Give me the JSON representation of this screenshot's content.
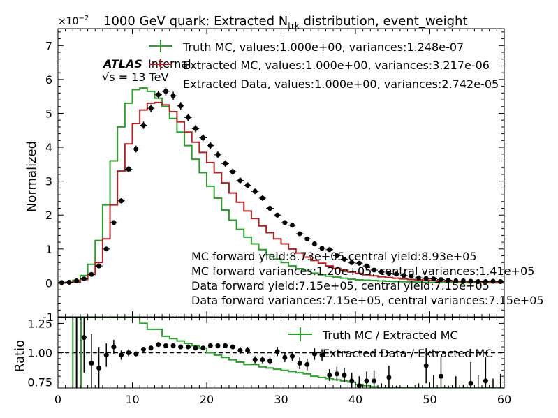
{
  "chart_data": {
    "type": "step-histogram-with-ratio",
    "title_parts": [
      "1000 GeV quark: Extracted N",
      "trk",
      " distribution, event_weight"
    ],
    "scale_prefix": "×10",
    "scale_exp": "−2",
    "ylabel": "Normalized",
    "ratio_ylabel": "Ratio",
    "xlim": [
      0,
      60
    ],
    "ylim": [
      -1,
      7.5
    ],
    "ratio_ylim": [
      0.7,
      1.3
    ],
    "xticks": [
      0,
      10,
      20,
      30,
      40,
      50,
      60
    ],
    "yticks": [
      0,
      1,
      2,
      3,
      4,
      5,
      6,
      7
    ],
    "ratio_yticks": [
      "0.75",
      "1.00",
      "1.25"
    ],
    "atlas_label": "ATLAS",
    "atlas_sub": "Internal",
    "energy_label": "√s = 13 TeV",
    "legend": [
      "Truth MC, values:1.000e+00, variances:1.248e-07",
      "Extracted MC, values:1.000e+00, variances:3.217e-06",
      "Extracted Data, values:1.000e+00, variances:2.742e-05"
    ],
    "ratio_legend": [
      "Truth MC / Extracted MC",
      "Extracted Data / Extracted MC"
    ],
    "annotations": [
      "MC forward yield:8.73e+05 central yield:8.93e+05",
      "MC forward variances:1.20e+05, central variances:1.41e+05",
      "Data forward yield:7.15e+05, central yield:7.15e+05",
      "Data forward variances:7.15e+05, central variances:7.15e+05"
    ],
    "colors": {
      "truth": "#2ca02c",
      "extracted_mc": "#b22222",
      "data": "#000000"
    },
    "bin_edges": [
      0,
      1,
      2,
      3,
      4,
      5,
      6,
      7,
      8,
      9,
      10,
      11,
      12,
      13,
      14,
      15,
      16,
      17,
      18,
      19,
      20,
      21,
      22,
      23,
      24,
      25,
      26,
      27,
      28,
      29,
      30,
      31,
      32,
      33,
      34,
      35,
      36,
      37,
      38,
      39,
      40,
      41,
      42,
      43,
      44,
      45,
      46,
      47,
      48,
      49,
      50,
      51,
      52,
      53,
      54,
      55,
      56,
      57,
      58,
      59,
      60
    ],
    "series": [
      {
        "name": "Truth MC",
        "values": [
          0.0,
          0.02,
          0.08,
          0.22,
          0.55,
          1.25,
          2.3,
          3.6,
          4.6,
          5.3,
          5.7,
          5.75,
          5.65,
          5.45,
          5.2,
          4.85,
          4.45,
          4.05,
          3.65,
          3.25,
          2.85,
          2.5,
          2.15,
          1.85,
          1.58,
          1.35,
          1.15,
          0.98,
          0.83,
          0.7,
          0.6,
          0.5,
          0.42,
          0.35,
          0.29,
          0.24,
          0.2,
          0.17,
          0.14,
          0.11,
          0.09,
          0.08,
          0.07,
          0.06,
          0.05,
          0.04,
          0.035,
          0.03,
          0.025,
          0.02,
          0.018,
          0.015,
          0.012,
          0.01,
          0.008,
          0.007,
          0.006,
          0.005,
          0.004,
          0.003
        ]
      },
      {
        "name": "Extracted MC",
        "values": [
          0.0,
          0.01,
          0.03,
          0.1,
          0.25,
          0.6,
          1.3,
          2.3,
          3.3,
          4.1,
          4.7,
          5.1,
          5.3,
          5.32,
          5.25,
          5.05,
          4.75,
          4.45,
          4.15,
          3.85,
          3.55,
          3.25,
          2.95,
          2.65,
          2.38,
          2.12,
          1.9,
          1.68,
          1.48,
          1.3,
          1.15,
          1.0,
          0.88,
          0.76,
          0.66,
          0.58,
          0.5,
          0.43,
          0.37,
          0.32,
          0.28,
          0.24,
          0.21,
          0.18,
          0.16,
          0.14,
          0.12,
          0.1,
          0.09,
          0.08,
          0.07,
          0.06,
          0.05,
          0.04,
          0.035,
          0.03,
          0.025,
          0.02,
          0.015,
          0.01
        ]
      },
      {
        "name": "Extracted Data",
        "values": [
          0.01,
          0.02,
          0.06,
          0.12,
          0.25,
          0.5,
          1.0,
          1.78,
          2.42,
          3.35,
          3.95,
          4.65,
          5.15,
          5.55,
          5.65,
          5.52,
          5.22,
          4.88,
          4.55,
          4.28,
          4.05,
          3.78,
          3.52,
          3.28,
          3.02,
          2.88,
          2.7,
          2.5,
          2.2,
          2.0,
          1.78,
          1.7,
          1.45,
          1.3,
          1.15,
          1.02,
          0.98,
          0.8,
          0.7,
          0.6,
          0.58,
          0.5,
          0.38,
          0.32,
          0.28,
          0.26,
          0.22,
          0.2,
          0.15,
          0.13,
          0.12,
          0.1,
          0.08,
          0.06,
          0.06,
          0.05,
          0.04,
          0.04,
          0.05,
          0.04
        ]
      }
    ],
    "ratio_series": [
      {
        "name": "Truth MC / Extracted MC",
        "values": [
          null,
          null,
          1.8,
          1.7,
          1.6,
          1.55,
          1.5,
          1.45,
          1.4,
          1.35,
          1.3,
          1.25,
          1.2,
          1.2,
          1.14,
          1.12,
          1.1,
          1.08,
          1.06,
          1.04,
          1.0,
          0.98,
          0.96,
          0.94,
          0.92,
          0.9,
          0.9,
          0.88,
          0.87,
          0.86,
          0.85,
          0.84,
          0.83,
          0.82,
          0.8,
          0.79,
          0.78,
          0.77,
          0.76,
          0.75,
          0.73,
          0.72,
          0.71,
          0.7,
          0.7,
          0.7,
          0.7,
          0.7,
          0.7,
          0.7,
          0.7,
          0.7,
          0.7,
          0.7,
          0.7,
          0.7,
          0.7,
          0.7,
          0.7,
          0.7
        ]
      },
      {
        "name": "Extracted Data / Extracted MC",
        "values": [
          null,
          null,
          null,
          1.13,
          0.91,
          0.87,
          0.98,
          1.05,
          0.98,
          1.0,
          0.99,
          1.03,
          1.04,
          1.07,
          1.06,
          1.06,
          1.05,
          1.05,
          1.04,
          1.04,
          1.06,
          1.06,
          1.06,
          1.05,
          1.02,
          1.02,
          0.94,
          0.94,
          0.93,
          1.01,
          0.96,
          0.97,
          0.91,
          0.9,
          0.99,
          0.98,
          0.81,
          0.82,
          0.81,
          0.76,
          0.72,
          0.76,
          0.76,
          0.64,
          0.79,
          0.6,
          0.57,
          0.55,
          0.6,
          0.89,
          0.66,
          0.8,
          0.56,
          0.63,
          0.55,
          0.74,
          0.61,
          0.76,
          0.58,
          0.62
        ]
      }
    ],
    "ratio_errors": [
      null,
      null,
      null,
      0.3,
      0.25,
      0.18,
      0.1,
      0.06,
      0.04,
      0.03,
      0.02,
      0.02,
      0.02,
      0.02,
      0.02,
      0.02,
      0.02,
      0.02,
      0.02,
      0.02,
      0.02,
      0.02,
      0.02,
      0.02,
      0.03,
      0.03,
      0.03,
      0.03,
      0.03,
      0.04,
      0.04,
      0.04,
      0.05,
      0.05,
      0.05,
      0.05,
      0.05,
      0.06,
      0.06,
      0.07,
      0.08,
      0.08,
      0.09,
      0.1,
      0.1,
      0.12,
      0.12,
      0.13,
      0.14,
      0.15,
      0.15,
      0.16,
      0.16,
      0.17,
      0.18,
      0.18,
      0.2,
      0.2,
      0.2,
      0.2
    ],
    "reference_line": 1.0
  }
}
